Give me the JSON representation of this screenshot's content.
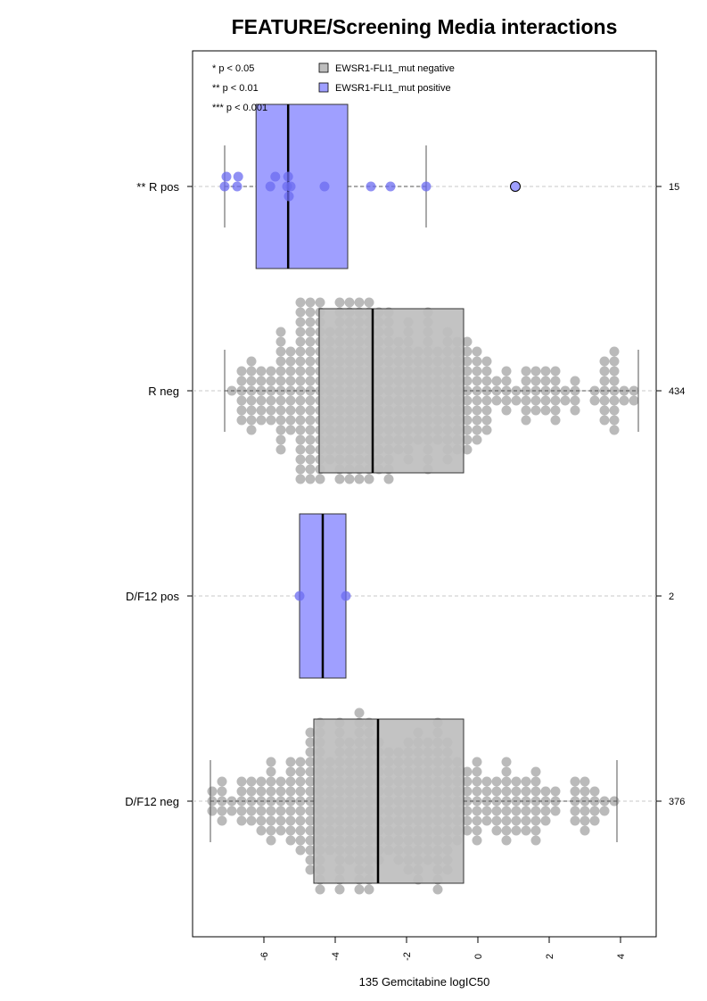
{
  "chart_data": {
    "type": "boxplot",
    "orientation": "horizontal",
    "title": "FEATURE/Screening Media interactions",
    "xlabel": "135 Gemcitabine logIC50",
    "ylabel": "",
    "xlim": [
      -8.0,
      5.0
    ],
    "x_ticks": [
      -6,
      -4,
      -2,
      0,
      2,
      4
    ],
    "x_tick_labels": [
      "-6",
      "-4",
      "-2",
      "0",
      "2",
      "4"
    ],
    "grid": "dashed horizontal line per group",
    "legend_position": "top-left",
    "significance_legend": [
      "* p < 0.05",
      "** p < 0.01",
      "*** p < 0.001"
    ],
    "legend": [
      {
        "label": "EWSR1-FLI1_mut negative",
        "color": "#bebebe"
      },
      {
        "label": "EWSR1-FLI1_mut positive",
        "color": "#9f9fff"
      }
    ],
    "colors": {
      "negative_box": "#bebebe",
      "positive_box": "#9f9fff",
      "negative_point": "#b2b2b2",
      "positive_point": "#6b6bf0"
    },
    "groups": [
      {
        "label": "** R pos",
        "n": "15",
        "status": "positive",
        "q1": -6.22,
        "median": -5.32,
        "q3": -3.65,
        "whisker_low": -7.1,
        "whisker_high": -1.45,
        "outliers": [
          1.05
        ],
        "points": [
          -7.1,
          -7.05,
          -6.75,
          -6.72,
          -5.82,
          -5.68,
          -5.35,
          -5.32,
          -5.3,
          -5.25,
          -4.3,
          -3.0,
          -2.45,
          -1.45,
          1.05
        ]
      },
      {
        "label": "R neg",
        "n": "434",
        "status": "negative",
        "q1": -4.45,
        "median": -2.95,
        "q3": -0.4,
        "whisker_low": -7.1,
        "whisker_high": 4.5,
        "outliers": []
      },
      {
        "label": "D/F12 pos",
        "n": "2",
        "status": "positive",
        "q1": -5.0,
        "median": -4.35,
        "q3": -3.7,
        "whisker_low": -5.0,
        "whisker_high": -3.7,
        "outliers": [],
        "points": [
          -5.0,
          -3.7
        ]
      },
      {
        "label": "D/F12 neg",
        "n": "376",
        "status": "negative",
        "q1": -4.6,
        "median": -2.8,
        "q3": -0.4,
        "whisker_low": -7.5,
        "whisker_high": 3.9,
        "outliers": []
      }
    ]
  }
}
